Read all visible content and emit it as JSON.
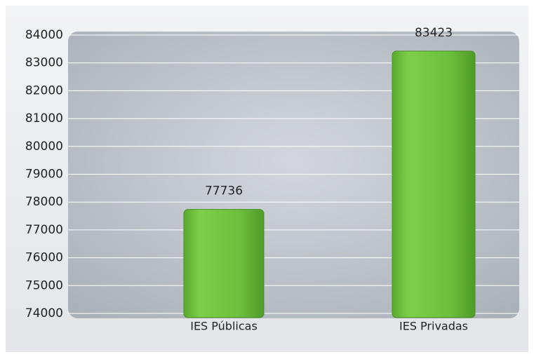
{
  "chart_data": {
    "type": "bar",
    "categories": [
      "IES Públicas",
      "IES Privadas"
    ],
    "values": [
      77736,
      83423
    ],
    "color": "#6cbf3c",
    "ylim": [
      74000,
      84000
    ],
    "yticks": [
      74000,
      75000,
      76000,
      77000,
      78000,
      79000,
      80000,
      81000,
      82000,
      83000,
      84000
    ],
    "grid": true
  }
}
